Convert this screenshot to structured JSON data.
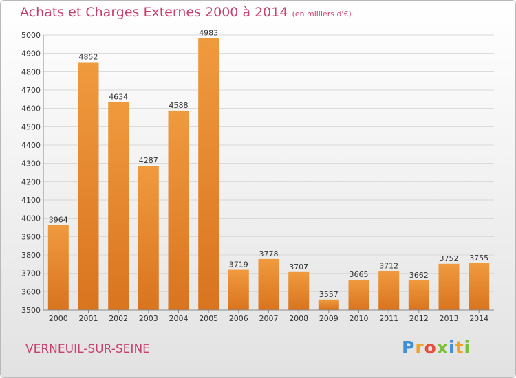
{
  "header": {
    "title": "Achats et Charges Externes 2000 à 2014",
    "unit": "(en milliers d'€)"
  },
  "footer": {
    "town": "VERNEUIL-SUR-SEINE",
    "brand_letters": [
      "P",
      "r",
      "o",
      "x",
      "i",
      "t",
      "i"
    ],
    "brand_colors": [
      "#3e8fd6",
      "#f0a127",
      "#e94e3d",
      "#7bbf3a",
      "#3e8fd6",
      "#f0a127",
      "#7bbf3a"
    ]
  },
  "chart_data": {
    "type": "bar",
    "title": "Achats et Charges Externes 2000 à 2014",
    "categories": [
      "2000",
      "2001",
      "2002",
      "2003",
      "2004",
      "2005",
      "2006",
      "2007",
      "2008",
      "2009",
      "2010",
      "2011",
      "2012",
      "2013",
      "2014"
    ],
    "values": [
      3964,
      4852,
      4634,
      4287,
      4588,
      4983,
      3719,
      3778,
      3707,
      3557,
      3665,
      3712,
      3662,
      3752,
      3755
    ],
    "value_labels": [
      "3964",
      "4852",
      "4634",
      "4287",
      "4588",
      "4983",
      "3719",
      "3778",
      "3707",
      "3557",
      "3665",
      "3712",
      "3662",
      "3752",
      "3755"
    ],
    "ylim": [
      3500,
      5000
    ],
    "yticks": [
      3500,
      3600,
      3700,
      3800,
      3900,
      4000,
      4100,
      4200,
      4300,
      4400,
      4500,
      4600,
      4700,
      4800,
      4900,
      5000
    ],
    "ytick_labels": [
      "3500",
      "3600",
      "3700",
      "3800",
      "3900",
      "4000",
      "4100",
      "4200",
      "4300",
      "4400",
      "4500",
      "4600",
      "4700",
      "4800",
      "4900",
      "5000"
    ],
    "grid": true,
    "bar_color": "#f09a3e",
    "bar_color_dark": "#d9741f",
    "grid_color": "#d7d7d7",
    "text_color": "#333333"
  }
}
